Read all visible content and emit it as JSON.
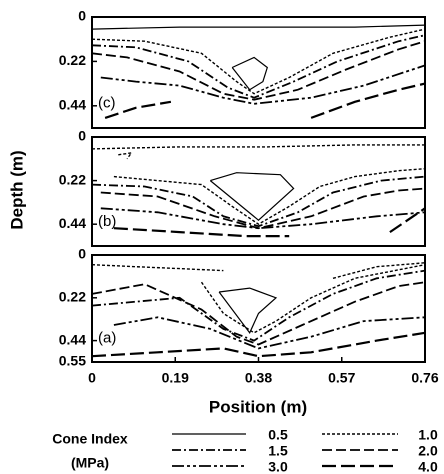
{
  "chart_data": [
    {
      "type": "contour",
      "label": "(c)",
      "xlim": [
        0,
        0.76
      ],
      "ylim": [
        0,
        0.55
      ],
      "yticks": [
        0,
        0.22,
        0.44
      ],
      "contours": [
        {
          "level": 0.5,
          "x": [
            0,
            0.2,
            0.4,
            0.6,
            0.76
          ],
          "y": [
            0.06,
            0.05,
            0.05,
            0.05,
            0.04
          ]
        },
        {
          "level": 0.5,
          "x": [
            0.32,
            0.37,
            0.4,
            0.39,
            0.36,
            0.32
          ],
          "y": [
            0.25,
            0.2,
            0.25,
            0.32,
            0.36,
            0.25
          ]
        },
        {
          "level": 1,
          "x": [
            0,
            0.12,
            0.25,
            0.33,
            0.37,
            0.45,
            0.55,
            0.68,
            0.76
          ],
          "y": [
            0.11,
            0.12,
            0.18,
            0.32,
            0.38,
            0.3,
            0.18,
            0.1,
            0.06
          ]
        },
        {
          "level": 1.5,
          "x": [
            0,
            0.1,
            0.22,
            0.31,
            0.37,
            0.46,
            0.56,
            0.7,
            0.76
          ],
          "y": [
            0.14,
            0.15,
            0.22,
            0.35,
            0.4,
            0.32,
            0.22,
            0.12,
            0.09
          ]
        },
        {
          "level": 2,
          "x": [
            0,
            0.08,
            0.2,
            0.3,
            0.37,
            0.47,
            0.58,
            0.7,
            0.76
          ],
          "y": [
            0.18,
            0.2,
            0.27,
            0.38,
            0.41,
            0.36,
            0.26,
            0.16,
            0.12
          ]
        },
        {
          "level": 3,
          "x": [
            0.02,
            0.1,
            0.2,
            0.3,
            0.37,
            0.5,
            0.62,
            0.76
          ],
          "y": [
            0.3,
            0.32,
            0.34,
            0.4,
            0.43,
            0.4,
            0.34,
            0.24
          ]
        },
        {
          "level": 4,
          "x": [
            0.03,
            0.1,
            0.18
          ],
          "y": [
            0.5,
            0.45,
            0.42
          ]
        },
        {
          "level": 4,
          "x": [
            0.5,
            0.6,
            0.7,
            0.76
          ],
          "y": [
            0.5,
            0.42,
            0.36,
            0.33
          ]
        }
      ]
    },
    {
      "type": "contour",
      "label": "(b)",
      "ylabel": "Depth (m)",
      "xlim": [
        0,
        0.76
      ],
      "ylim": [
        0,
        0.55
      ],
      "yticks": [
        0,
        0.22,
        0.44
      ],
      "contours": [
        {
          "level": 0.5,
          "x": [
            0.27,
            0.33,
            0.43,
            0.46,
            0.38,
            0.27
          ],
          "y": [
            0.22,
            0.18,
            0.19,
            0.26,
            0.42,
            0.22
          ]
        },
        {
          "level": 1,
          "x": [
            0.06,
            0.09,
            0.08
          ],
          "y": [
            0.09,
            0.08,
            0.11
          ]
        },
        {
          "level": 1,
          "x": [
            0,
            0.2,
            0.4,
            0.6,
            0.76
          ],
          "y": [
            0.06,
            0.05,
            0.05,
            0.04,
            0.04
          ]
        },
        {
          "level": 1,
          "x": [
            0.05,
            0.15,
            0.25,
            0.32,
            0.38,
            0.45,
            0.52,
            0.6,
            0.7,
            0.76
          ],
          "y": [
            0.2,
            0.22,
            0.24,
            0.35,
            0.44,
            0.35,
            0.25,
            0.2,
            0.17,
            0.16
          ]
        },
        {
          "level": 1.5,
          "x": [
            0,
            0.12,
            0.23,
            0.3,
            0.38,
            0.47,
            0.55,
            0.66,
            0.76
          ],
          "y": [
            0.24,
            0.25,
            0.3,
            0.4,
            0.45,
            0.38,
            0.28,
            0.22,
            0.2
          ]
        },
        {
          "level": 2,
          "x": [
            0.02,
            0.15,
            0.28,
            0.38,
            0.5,
            0.62,
            0.7,
            0.76
          ],
          "y": [
            0.28,
            0.3,
            0.4,
            0.46,
            0.4,
            0.3,
            0.27,
            0.26
          ]
        },
        {
          "level": 3,
          "x": [
            0.02,
            0.15,
            0.3,
            0.38,
            0.5,
            0.65,
            0.76
          ],
          "y": [
            0.36,
            0.38,
            0.44,
            0.46,
            0.44,
            0.4,
            0.38
          ]
        },
        {
          "level": 4,
          "x": [
            0.05,
            0.2,
            0.35,
            0.45
          ],
          "y": [
            0.46,
            0.48,
            0.5,
            0.5
          ]
        },
        {
          "level": 4,
          "x": [
            0.68,
            0.72,
            0.76
          ],
          "y": [
            0.48,
            0.42,
            0.36
          ]
        }
      ]
    },
    {
      "type": "contour",
      "label": "(a)",
      "xlabel": "Position (m)",
      "xlim": [
        0,
        0.76
      ],
      "ylim": [
        0,
        0.55
      ],
      "xticks": [
        0,
        0.19,
        0.38,
        0.57,
        0.76
      ],
      "yticks": [
        0,
        0.22,
        0.44,
        0.55
      ],
      "contours": [
        {
          "level": 0.5,
          "x": [
            0.29,
            0.36,
            0.42,
            0.38,
            0.36,
            0.29
          ],
          "y": [
            0.19,
            0.17,
            0.22,
            0.3,
            0.4,
            0.19
          ]
        },
        {
          "level": 1,
          "x": [
            0,
            0.1,
            0.2,
            0.3
          ],
          "y": [
            0.05,
            0.06,
            0.07,
            0.08
          ]
        },
        {
          "level": 1,
          "x": [
            0.55,
            0.65,
            0.76
          ],
          "y": [
            0.12,
            0.06,
            0.04
          ]
        },
        {
          "level": 1,
          "x": [
            0.25,
            0.3,
            0.37,
            0.42,
            0.5,
            0.6,
            0.76
          ],
          "y": [
            0.14,
            0.3,
            0.4,
            0.34,
            0.22,
            0.12,
            0.05
          ]
        },
        {
          "level": 1.5,
          "x": [
            0,
            0.1,
            0.2,
            0.3,
            0.37,
            0.45,
            0.55,
            0.65,
            0.76
          ],
          "y": [
            0.26,
            0.24,
            0.22,
            0.38,
            0.44,
            0.32,
            0.2,
            0.12,
            0.08
          ]
        },
        {
          "level": 2,
          "x": [
            0,
            0.12,
            0.25,
            0.33,
            0.38,
            0.48,
            0.6,
            0.7,
            0.76
          ],
          "y": [
            0.2,
            0.15,
            0.28,
            0.42,
            0.46,
            0.36,
            0.24,
            0.16,
            0.14
          ]
        },
        {
          "level": 3,
          "x": [
            0.05,
            0.15,
            0.27,
            0.38,
            0.5,
            0.62,
            0.76
          ],
          "y": [
            0.36,
            0.32,
            0.38,
            0.48,
            0.42,
            0.34,
            0.32
          ]
        },
        {
          "level": 4,
          "x": [
            0,
            0.15,
            0.3,
            0.38,
            0.5,
            0.65,
            0.76
          ],
          "y": [
            0.52,
            0.5,
            0.48,
            0.52,
            0.5,
            0.44,
            0.4
          ]
        }
      ]
    }
  ],
  "legend": {
    "title": "Cone Index",
    "subtitle": "(MPa)",
    "entries": [
      {
        "value": 0.5,
        "label": "0.5"
      },
      {
        "value": 1,
        "label": "1.0"
      },
      {
        "value": 1.5,
        "label": "1.5"
      },
      {
        "value": 2,
        "label": "2.0"
      },
      {
        "value": 3,
        "label": "3.0"
      },
      {
        "value": 4,
        "label": "4.0"
      }
    ],
    "dashes": [
      "none",
      "3,2",
      "9,3,2,3",
      "10,4",
      "12,3,3,3,3,3",
      "14,5"
    ],
    "widths": [
      1.2,
      1.4,
      1.8,
      1.8,
      1.8,
      2.2
    ],
    "color": "#000000"
  }
}
